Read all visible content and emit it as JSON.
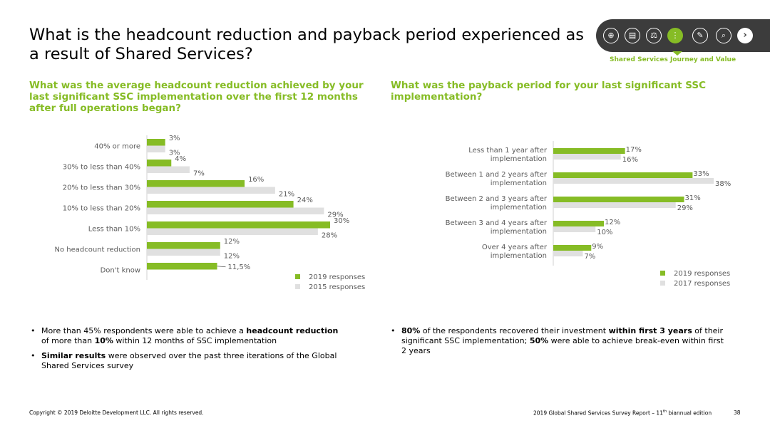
{
  "header": {
    "title": "What is the headcount reduction and payback period experienced as a result of Shared Services?",
    "nav_caption": "Shared Services Journey and Value",
    "nav_icons": [
      "globe-icon",
      "clipboard-icon",
      "gavel-icon",
      "footprints-icon",
      "tools-icon",
      "telescope-icon"
    ],
    "nav_next": "›"
  },
  "left": {
    "question": "What was the average headcount reduction achieved by your last significant SSC implementation over the first 12 months after full operations began?",
    "bullets": [
      {
        "pre": "More than 45% respondents were able to achieve a ",
        "b1": "headcount reduction",
        "mid": " of more than ",
        "b2": "10%",
        "post": " within 12 months of SSC implementation"
      },
      {
        "b1": "Similar results",
        "post": " were observed over the past three iterations of the Global Shared Services survey"
      }
    ]
  },
  "right": {
    "question": "What was the payback period for your last significant SSC implementation?",
    "bullets": [
      {
        "b1": "80%",
        "mid": " of the respondents recovered their investment ",
        "b2": "within first 3 years",
        "post": " of their significant SSC implementation; ",
        "b3": "50%",
        "post2": " were able to achieve break-even within first 2 years"
      }
    ]
  },
  "footer": {
    "copyright": "Copyright © 2019 Deloitte Development LLC. All rights reserved.",
    "report": "2019 Global Shared Services Survey Report – 11",
    "report_sup": "th",
    "report_end": " biannual edition",
    "page": "38"
  },
  "colors": {
    "green": "#86bc25",
    "grey": "#e0e0e0",
    "label": "#5a5a5a",
    "axis": "#d0d0d0"
  },
  "chart_data": [
    {
      "type": "bar",
      "orientation": "horizontal",
      "categories": [
        "40% or more",
        "30% to less than 40%",
        "20% to less than 30%",
        "10% to less than 20%",
        "Less than 10%",
        "No headcount reduction",
        "Don't know"
      ],
      "series": [
        {
          "name": "2019 responses",
          "values": [
            3,
            4,
            16,
            24,
            30,
            12,
            11.5
          ],
          "labels": [
            "3%",
            "4%",
            "16%",
            "24%",
            "30%",
            "12%",
            "11,5%"
          ]
        },
        {
          "name": "2015 responses",
          "values": [
            3,
            7,
            21,
            29,
            28,
            12,
            null
          ],
          "labels": [
            "3%",
            "7%",
            "21%",
            "29%",
            "28%",
            "12%",
            ""
          ]
        }
      ],
      "xlim": [
        0,
        30
      ],
      "legend": "bottom-right"
    },
    {
      "type": "bar",
      "orientation": "horizontal",
      "categories": [
        "Less than 1 year after implementation",
        "Between 1 and 2 years after implementation",
        "Between 2 and 3 years after implementation",
        "Between 3 and 4 years after implementation",
        "Over 4 years after implementation"
      ],
      "series": [
        {
          "name": "2019 responses",
          "values": [
            17,
            33,
            31,
            12,
            9
          ],
          "labels": [
            "17%",
            "33%",
            "31%",
            "12%",
            "9%"
          ]
        },
        {
          "name": "2017 responses",
          "values": [
            16,
            38,
            29,
            10,
            7
          ],
          "labels": [
            "16%",
            "38%",
            "29%",
            "10%",
            "7%"
          ]
        }
      ],
      "xlim": [
        0,
        38
      ],
      "legend": "bottom-right"
    }
  ]
}
